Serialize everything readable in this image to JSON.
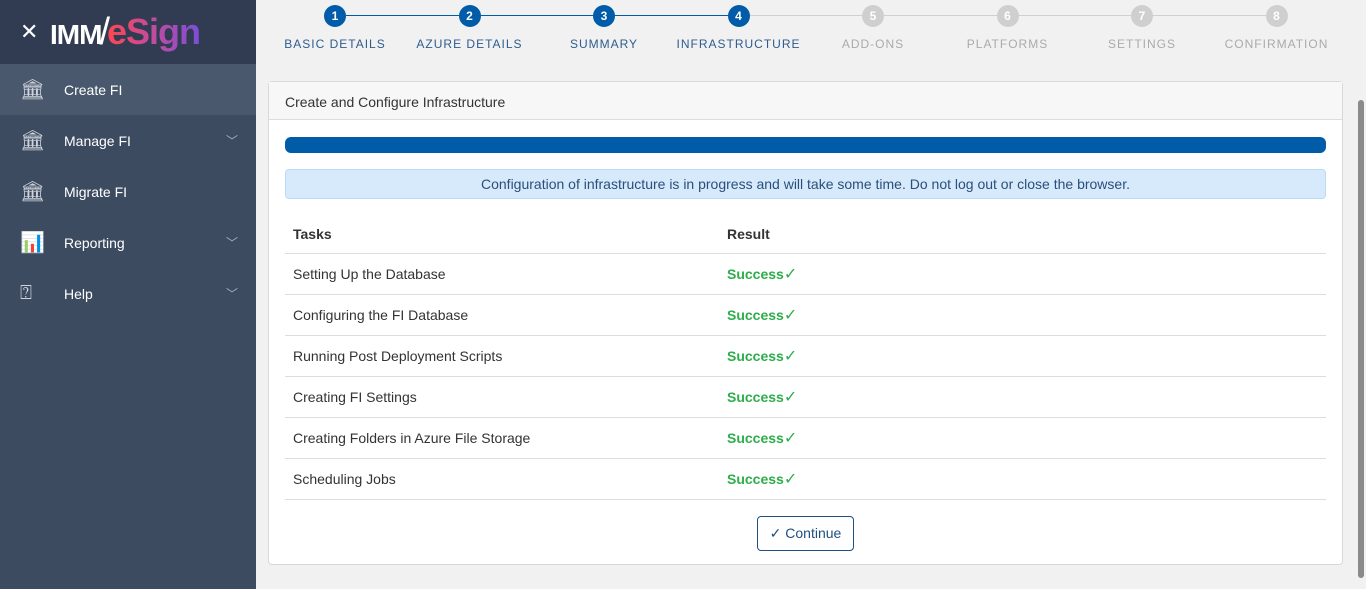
{
  "app": {
    "logo_prefix": "IMM",
    "logo_suffix": "eSign"
  },
  "sidebar": {
    "items": [
      {
        "label": "Create FI",
        "icon": "bank-plus-icon",
        "active": true,
        "expandable": false
      },
      {
        "label": "Manage FI",
        "icon": "bank-gear-icon",
        "active": false,
        "expandable": true
      },
      {
        "label": "Migrate FI",
        "icon": "bank-arrow-icon",
        "active": false,
        "expandable": false
      },
      {
        "label": "Reporting",
        "icon": "bar-chart-icon",
        "active": false,
        "expandable": true
      },
      {
        "label": "Help",
        "icon": "help-bubble-icon",
        "active": false,
        "expandable": true
      }
    ]
  },
  "stepper": {
    "steps": [
      {
        "num": "1",
        "label": "BASIC DETAILS",
        "done": true
      },
      {
        "num": "2",
        "label": "AZURE DETAILS",
        "done": true
      },
      {
        "num": "3",
        "label": "SUMMARY",
        "done": true
      },
      {
        "num": "4",
        "label": "INFRASTRUCTURE",
        "done": true
      },
      {
        "num": "5",
        "label": "ADD-ONS",
        "done": false
      },
      {
        "num": "6",
        "label": "PLATFORMS",
        "done": false
      },
      {
        "num": "7",
        "label": "SETTINGS",
        "done": false
      },
      {
        "num": "8",
        "label": "CONFIRMATION",
        "done": false
      }
    ]
  },
  "card": {
    "title": "Create and Configure Infrastructure",
    "progress_percent": 100,
    "alert": "Configuration of infrastructure is in progress and will take some time. Do not log out or close the browser.",
    "columns": [
      "Tasks",
      "Result"
    ],
    "rows": [
      {
        "task": "Setting Up the Database",
        "result": "Success"
      },
      {
        "task": "Configuring the FI Database",
        "result": "Success"
      },
      {
        "task": "Running Post Deployment Scripts",
        "result": "Success"
      },
      {
        "task": "Creating FI Settings",
        "result": "Success"
      },
      {
        "task": "Creating Folders in Azure File Storage",
        "result": "Success"
      },
      {
        "task": "Scheduling Jobs",
        "result": "Success"
      }
    ],
    "continue_label": "Continue"
  },
  "colors": {
    "primary": "#005ca8",
    "success": "#2cae4a",
    "sidebar": "#3d4b61"
  }
}
